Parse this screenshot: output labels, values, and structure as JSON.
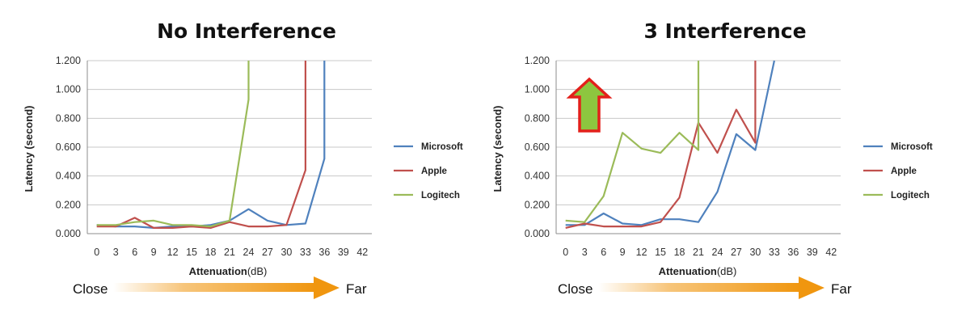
{
  "chart_data": [
    {
      "type": "line",
      "title": "No Interference",
      "xlabel": "Attenuation",
      "xlabel_unit": "(dB)",
      "ylabel": "Latency (second)",
      "x": [
        0,
        3,
        6,
        9,
        12,
        15,
        18,
        21,
        24,
        27,
        30,
        33,
        36,
        39,
        42
      ],
      "ylim": [
        0,
        1.2
      ],
      "yticks": [
        "0.000",
        "0.200",
        "0.400",
        "0.600",
        "0.800",
        "1.000",
        "1.200"
      ],
      "grid": "horizontal",
      "legend_position": "right",
      "series": [
        {
          "name": "Microsoft",
          "color": "#4f81bd",
          "points": [
            [
              0,
              0.06
            ],
            [
              3,
              0.05
            ],
            [
              6,
              0.05
            ],
            [
              9,
              0.04
            ],
            [
              12,
              0.05
            ],
            [
              15,
              0.05
            ],
            [
              18,
              0.06
            ],
            [
              21,
              0.09
            ],
            [
              24,
              0.17
            ],
            [
              27,
              0.09
            ],
            [
              30,
              0.06
            ],
            [
              33,
              0.07
            ],
            [
              36,
              0.52
            ],
            [
              36,
              1.2
            ]
          ]
        },
        {
          "name": "Apple",
          "color": "#c0504d",
          "points": [
            [
              0,
              0.05
            ],
            [
              3,
              0.05
            ],
            [
              6,
              0.11
            ],
            [
              9,
              0.04
            ],
            [
              12,
              0.04
            ],
            [
              15,
              0.05
            ],
            [
              18,
              0.04
            ],
            [
              21,
              0.08
            ],
            [
              24,
              0.05
            ],
            [
              27,
              0.05
            ],
            [
              30,
              0.06
            ],
            [
              33,
              0.44
            ],
            [
              33,
              1.2
            ]
          ]
        },
        {
          "name": "Logitech",
          "color": "#9bbb59",
          "points": [
            [
              0,
              0.06
            ],
            [
              3,
              0.06
            ],
            [
              6,
              0.08
            ],
            [
              9,
              0.09
            ],
            [
              12,
              0.06
            ],
            [
              15,
              0.06
            ],
            [
              18,
              0.05
            ],
            [
              21,
              0.09
            ],
            [
              24,
              0.93
            ],
            [
              24,
              1.2
            ]
          ]
        }
      ]
    },
    {
      "type": "line",
      "title": "3 Interference",
      "xlabel": "Attenuation",
      "xlabel_unit": "(dB)",
      "ylabel": "Latency (second)",
      "x": [
        0,
        3,
        6,
        9,
        12,
        15,
        18,
        21,
        24,
        27,
        30,
        33,
        36,
        39,
        42
      ],
      "ylim": [
        0,
        1.2
      ],
      "yticks": [
        "0.000",
        "0.200",
        "0.400",
        "0.600",
        "0.800",
        "1.000",
        "1.200"
      ],
      "grid": "horizontal",
      "legend_position": "right",
      "series": [
        {
          "name": "Microsoft",
          "color": "#4f81bd",
          "points": [
            [
              0,
              0.06
            ],
            [
              3,
              0.06
            ],
            [
              6,
              0.14
            ],
            [
              9,
              0.07
            ],
            [
              12,
              0.06
            ],
            [
              15,
              0.1
            ],
            [
              18,
              0.1
            ],
            [
              21,
              0.08
            ],
            [
              24,
              0.29
            ],
            [
              27,
              0.69
            ],
            [
              30,
              0.58
            ],
            [
              33,
              1.2
            ]
          ]
        },
        {
          "name": "Apple",
          "color": "#c0504d",
          "points": [
            [
              0,
              0.04
            ],
            [
              3,
              0.07
            ],
            [
              6,
              0.05
            ],
            [
              9,
              0.05
            ],
            [
              12,
              0.05
            ],
            [
              15,
              0.08
            ],
            [
              18,
              0.25
            ],
            [
              21,
              0.77
            ],
            [
              24,
              0.56
            ],
            [
              27,
              0.86
            ],
            [
              30,
              0.63
            ],
            [
              30,
              1.2
            ]
          ]
        },
        {
          "name": "Logitech",
          "color": "#9bbb59",
          "points": [
            [
              0,
              0.09
            ],
            [
              3,
              0.08
            ],
            [
              6,
              0.26
            ],
            [
              9,
              0.7
            ],
            [
              12,
              0.59
            ],
            [
              15,
              0.56
            ],
            [
              18,
              0.7
            ],
            [
              21,
              0.58
            ],
            [
              21,
              1.2
            ]
          ]
        }
      ]
    }
  ],
  "distance_labels": {
    "near": "Close",
    "far": "Far"
  },
  "colors": {
    "distance_arrow": "#f0960f",
    "up_arrow_fill": "#8dc63f",
    "up_arrow_stroke": "#e3201b",
    "gridline": "#c8c8c8",
    "axis": "#8c8c8c"
  },
  "icons": {
    "up_arrow": "up-arrow-icon"
  }
}
